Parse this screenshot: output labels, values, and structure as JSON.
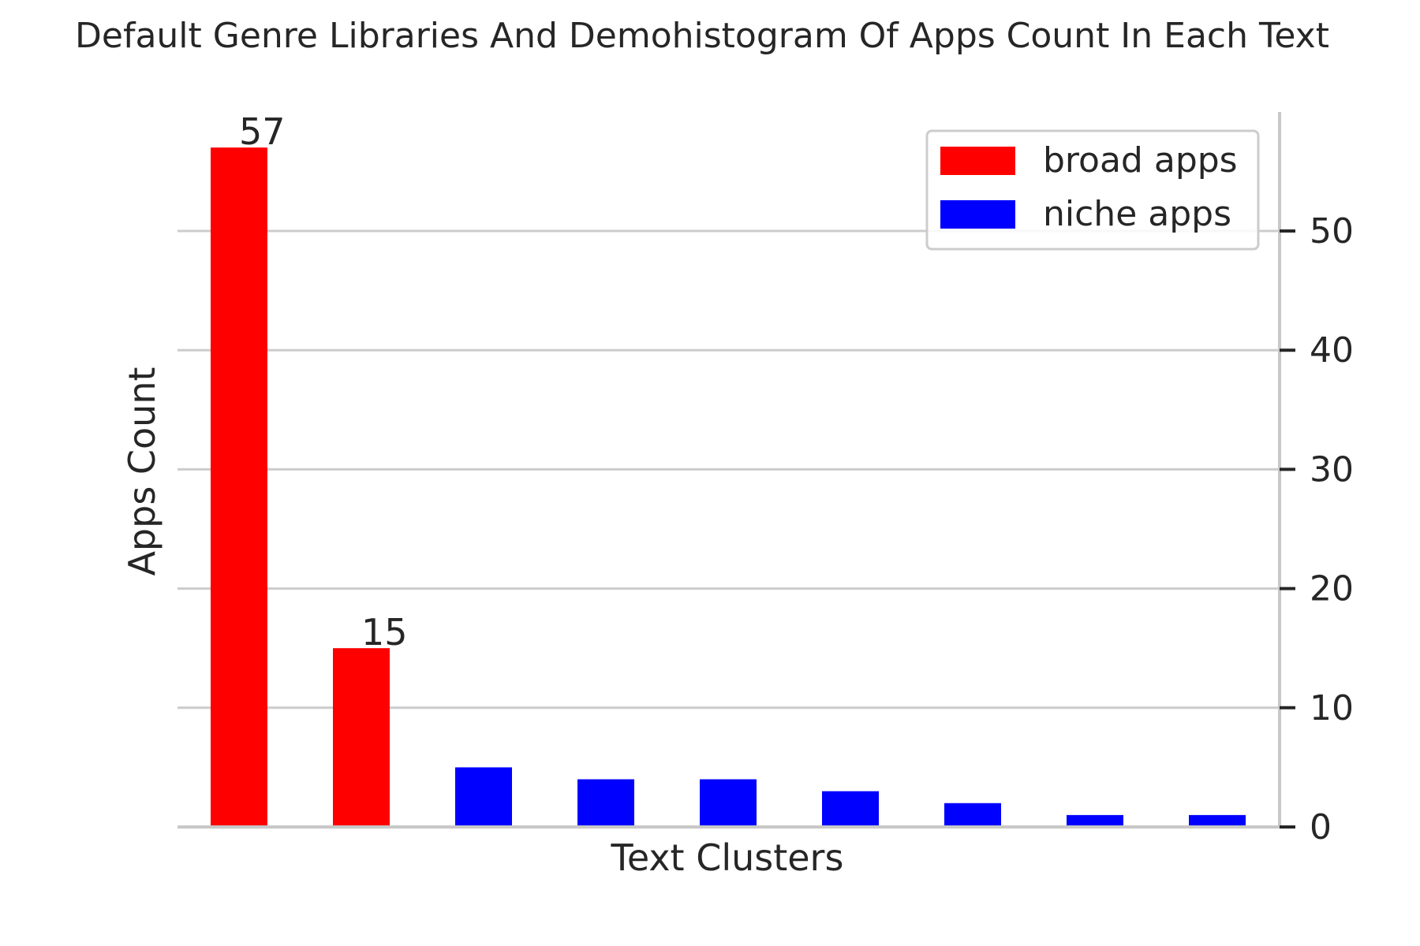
{
  "chart_data": {
    "type": "bar",
    "title": "Default Genre Libraries And Demohistogram Of Apps Count In Each Text",
    "xlabel": "Text Clusters",
    "ylabel": "Apps Count",
    "ylim": [
      0,
      60
    ],
    "yticks": [
      0,
      10,
      20,
      30,
      40,
      50
    ],
    "y_axis_side": "right",
    "grid": "horizontal",
    "legend_position": "top-right",
    "categories": [
      "",
      "",
      "",
      "",
      "",
      "",
      "",
      "",
      ""
    ],
    "values": [
      57,
      15,
      5,
      4,
      4,
      3,
      2,
      1,
      1
    ],
    "groups": [
      "broad apps",
      "broad apps",
      "niche apps",
      "niche apps",
      "niche apps",
      "niche apps",
      "niche apps",
      "niche apps",
      "niche apps"
    ],
    "data_labels": [
      "57",
      "15",
      "",
      "",
      "",
      "",
      "",
      "",
      ""
    ],
    "legend": [
      {
        "name": "broad apps",
        "color": "#ff0000"
      },
      {
        "name": "niche apps",
        "color": "#0000ff"
      }
    ],
    "colors": {
      "broad apps": "#ff0000",
      "niche apps": "#0000ff",
      "grid": "#cccccc",
      "axis": "#c8c8c8",
      "text": "#262626"
    }
  }
}
